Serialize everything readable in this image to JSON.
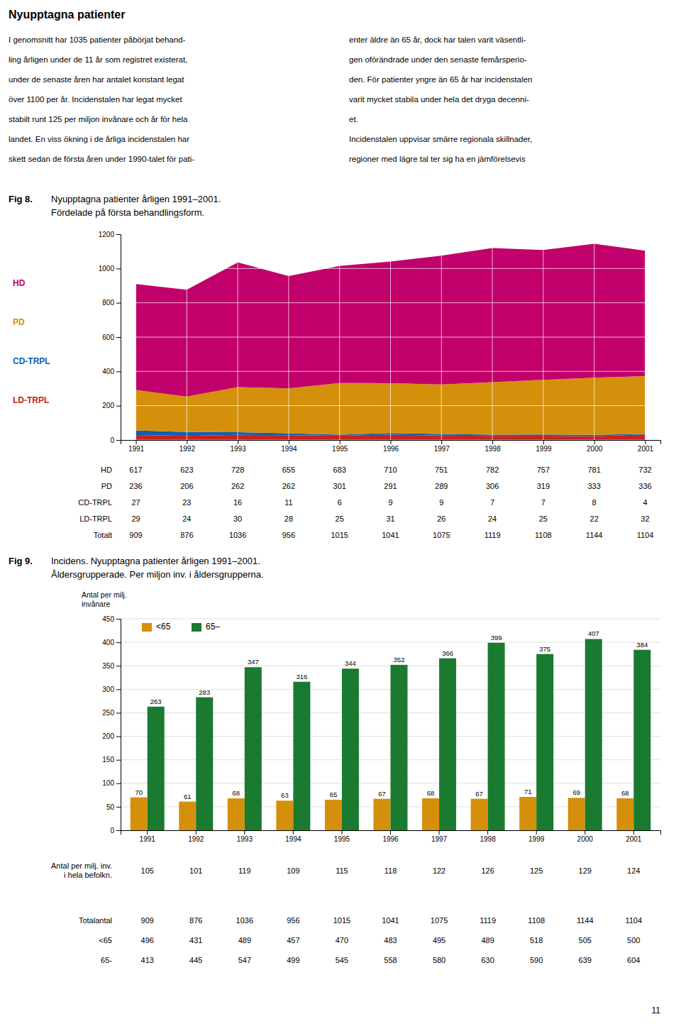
{
  "title": "Nyupptagna patienter",
  "text_columns": [
    [
      "I genomsnitt har 1035 patienter påbörjat behand-",
      "ling årligen under de 11 år som registret existerat,",
      "under de senaste åren har antalet konstant legat",
      "över 1100 per år. Incidenstalen har legat mycket",
      "stabilt runt 125 per miljon invånare och år för hela",
      "landet. En viss ökning i de årliga incidenstalen har",
      "skett sedan de första åren under 1990-talet för pati-"
    ],
    [
      "enter äldre än 65 år, dock har talen varit väsentli-",
      "gen oförändrade under den senaste femårsperio-",
      "den. För patienter yngre än 65 år har incidenstalen",
      "varit mycket stabila under hela det dryga decenni-",
      "et.",
      "Incidenstalen uppvisar smärre regionala skillnader,",
      "regioner med lägre tal ter sig ha en jämförelsevis"
    ]
  ],
  "page_number": "11",
  "chart_data": [
    {
      "type": "area",
      "figure_label": "Fig 8.",
      "title": "Nyupptagna patienter årligen 1991–2001.",
      "subtitle": "Fördelade på första behandlingsform.",
      "categories": [
        "1991",
        "1992",
        "1993",
        "1994",
        "1995",
        "1996",
        "1997",
        "1998",
        "1999",
        "2000",
        "2001"
      ],
      "series": [
        {
          "name": "HD",
          "color": "#C2006C",
          "values": [
            617,
            623,
            728,
            655,
            683,
            710,
            751,
            782,
            757,
            781,
            732
          ]
        },
        {
          "name": "PD",
          "color": "#D4900A",
          "values": [
            236,
            206,
            262,
            262,
            301,
            291,
            289,
            306,
            319,
            333,
            336
          ]
        },
        {
          "name": "CD-TRPL",
          "color": "#1060B0",
          "values": [
            27,
            23,
            16,
            11,
            6,
            9,
            9,
            7,
            7,
            8,
            4
          ]
        },
        {
          "name": "LD-TRPL",
          "color": "#CC2020",
          "values": [
            29,
            24,
            30,
            28,
            25,
            31,
            26,
            24,
            25,
            22,
            32
          ]
        }
      ],
      "stacked": true,
      "ylim": [
        0,
        1200
      ],
      "yticks": [
        0,
        200,
        400,
        600,
        800,
        1000,
        1200
      ],
      "grid": true,
      "legend": "left",
      "table": {
        "rows": [
          "HD",
          "PD",
          "CD-TRPL",
          "LD-TRPL",
          "Totalt"
        ],
        "values": [
          [
            617,
            623,
            728,
            655,
            683,
            710,
            751,
            782,
            757,
            781,
            732
          ],
          [
            236,
            206,
            262,
            262,
            301,
            291,
            289,
            306,
            319,
            333,
            336
          ],
          [
            27,
            23,
            16,
            11,
            6,
            9,
            9,
            7,
            7,
            8,
            4
          ],
          [
            29,
            24,
            30,
            28,
            25,
            31,
            26,
            24,
            25,
            22,
            32
          ],
          [
            909,
            876,
            1036,
            956,
            1015,
            1041,
            1075,
            1119,
            1108,
            1144,
            1104
          ]
        ]
      }
    },
    {
      "type": "bar",
      "figure_label": "Fig 9.",
      "title": "Incidens. Nyupptagna patienter årligen 1991–2001.",
      "subtitle": "Åldersgrupperade. Per miljon inv. i åldersgrupperna.",
      "y_label": "Antal per milj.\ninvånare",
      "categories": [
        "1991",
        "1992",
        "1993",
        "1994",
        "1995",
        "1996",
        "1997",
        "1998",
        "1999",
        "2000",
        "2001"
      ],
      "series": [
        {
          "name": "<65",
          "color": "#D4900A",
          "values": [
            70,
            61,
            68,
            63,
            65,
            67,
            68,
            67,
            71,
            69,
            68
          ]
        },
        {
          "name": "65–",
          "color": "#1A7A30",
          "values": [
            263,
            283,
            347,
            316,
            344,
            352,
            366,
            399,
            375,
            407,
            384
          ]
        }
      ],
      "ylim": [
        0,
        450
      ],
      "yticks": [
        0,
        50,
        100,
        150,
        200,
        250,
        300,
        350,
        400,
        450
      ],
      "grid": "y",
      "legend": "upper left",
      "data_labels": true,
      "table": {
        "rows": [
          [
            "Antal per milj. inv.",
            "i hela befolkn."
          ],
          "Totalantal",
          "<65",
          "65-"
        ],
        "values": [
          [
            105,
            101,
            119,
            109,
            115,
            118,
            122,
            126,
            125,
            129,
            124
          ],
          [
            909,
            876,
            1036,
            956,
            1015,
            1041,
            1075,
            1119,
            1108,
            1144,
            1104
          ],
          [
            496,
            431,
            489,
            457,
            470,
            483,
            495,
            489,
            518,
            505,
            500
          ],
          [
            413,
            445,
            547,
            499,
            545,
            558,
            580,
            630,
            590,
            639,
            604
          ]
        ]
      }
    }
  ]
}
